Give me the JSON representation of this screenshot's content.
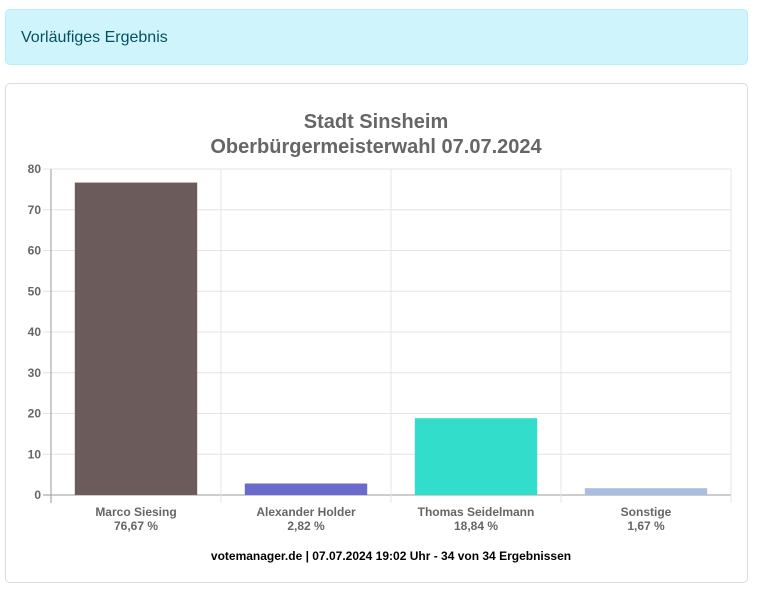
{
  "alert": {
    "text": "Vorläufiges Ergebnis",
    "background": "#cff4fc",
    "text_color": "#055160"
  },
  "chart_data": {
    "type": "bar",
    "title": [
      "Stadt Sinsheim",
      "Oberbürgermeisterwahl 07.07.2024"
    ],
    "categories": [
      "Marco Siesing",
      "Alexander Holder",
      "Thomas Seidelmann",
      "Sonstige"
    ],
    "value_labels": [
      "76,67 %",
      "2,82 %",
      "18,84 %",
      "1,67 %"
    ],
    "values": [
      76.67,
      2.82,
      18.84,
      1.67
    ],
    "colors": [
      "#6b5b5b",
      "#6a6acd",
      "#33ddcc",
      "#a9bde0"
    ],
    "ylim": [
      0,
      80
    ],
    "yticks": [
      0,
      10,
      20,
      30,
      40,
      50,
      60,
      70,
      80
    ],
    "grid": true,
    "legend": "none",
    "footer": "votemanager.de | 07.07.2024 19:02 Uhr - 34 von 34 Ergebnissen"
  }
}
